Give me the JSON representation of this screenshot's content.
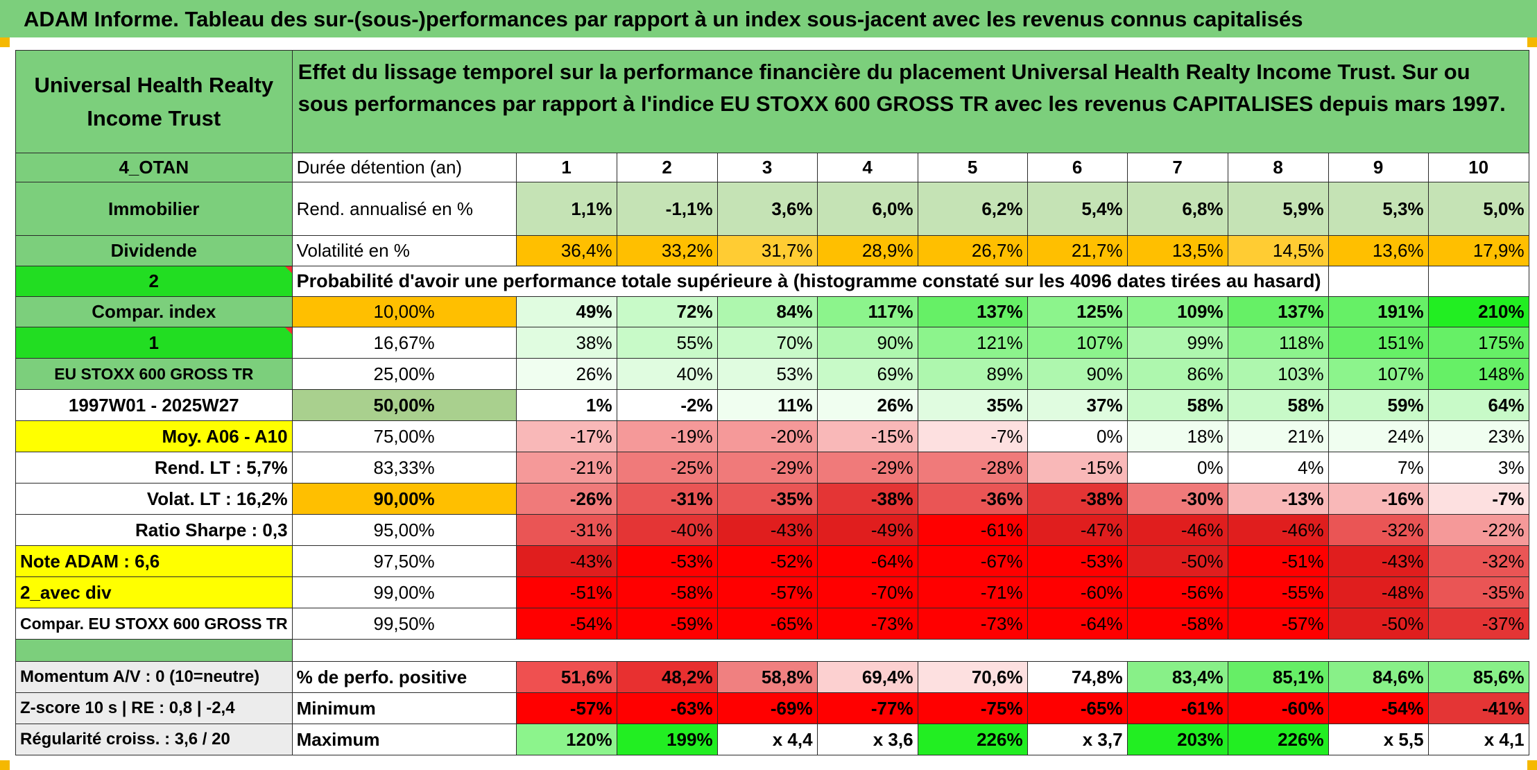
{
  "header": {
    "title": "ADAM Informe. Tableau des sur-(sous-)performances par rapport à un index sous-jacent avec les revenus connus capitalisés"
  },
  "fund": {
    "name": "Universal Health Realty Income Trust",
    "description": "Effet du lissage temporel sur la performance financière du placement Universal Health Realty Income Trust. Sur ou sous performances par rapport à l'indice EU STOXX 600 GROSS TR avec les revenus CAPITALISES depuis mars 1997."
  },
  "side_labels": {
    "code": "4_OTAN",
    "sector": "Immobilier",
    "type": "Dividende",
    "num2": "2",
    "compar": "Compar. index",
    "num1": "1",
    "index": "EU STOXX 600 GROSS TR",
    "period": "1997W01 - 2025W27",
    "moy": "Moy. A06 - A10",
    "rend_lt": "Rend. LT :   5,7%",
    "volat_lt": "Volat. LT :   16,2%",
    "sharpe": "Ratio Sharpe :   0,3",
    "note": "Note ADAM : 6,6",
    "avec_div": "2_avec div",
    "compar_full": "Compar. EU STOXX 600 GROSS TR",
    "momentum": "Momentum A/V : 0 (10=neutre)",
    "zscore": "Z-score 10 s | RE : 0,8 | -2,4",
    "regularite": "Régularité croiss. : 3,6 / 20"
  },
  "row_labels": {
    "duree": "Durée détention (an)",
    "rend": "Rend. annualisé en %",
    "volat": "Volatilité en %",
    "prob": "Probabilité d'avoir une performance totale supérieure à (histogramme constaté sur les 4096 dates tirées au hasard)",
    "pos": "% de perfo. positive",
    "min": "Minimum",
    "max": "Maximum"
  },
  "years": [
    "1",
    "2",
    "3",
    "4",
    "5",
    "6",
    "7",
    "8",
    "9",
    "10"
  ],
  "rendement": [
    "1,1%",
    "-1,1%",
    "3,6%",
    "6,0%",
    "6,2%",
    "5,4%",
    "6,8%",
    "5,9%",
    "5,3%",
    "5,0%"
  ],
  "volatilite": [
    "36,4%",
    "33,2%",
    "31,7%",
    "28,9%",
    "26,7%",
    "21,7%",
    "13,5%",
    "14,5%",
    "13,6%",
    "17,9%"
  ],
  "prob_rows": [
    {
      "pct": "10,00%",
      "values": [
        "49%",
        "72%",
        "84%",
        "117%",
        "137%",
        "125%",
        "109%",
        "137%",
        "191%",
        "210%"
      ]
    },
    {
      "pct": "16,67%",
      "values": [
        "38%",
        "55%",
        "70%",
        "90%",
        "121%",
        "107%",
        "99%",
        "118%",
        "151%",
        "175%"
      ]
    },
    {
      "pct": "25,00%",
      "values": [
        "26%",
        "40%",
        "53%",
        "69%",
        "89%",
        "90%",
        "86%",
        "103%",
        "107%",
        "148%"
      ]
    },
    {
      "pct": "50,00%",
      "values": [
        "1%",
        "-2%",
        "11%",
        "26%",
        "35%",
        "37%",
        "58%",
        "58%",
        "59%",
        "64%"
      ]
    },
    {
      "pct": "75,00%",
      "values": [
        "-17%",
        "-19%",
        "-20%",
        "-15%",
        "-7%",
        "0%",
        "18%",
        "21%",
        "24%",
        "23%"
      ]
    },
    {
      "pct": "83,33%",
      "values": [
        "-21%",
        "-25%",
        "-29%",
        "-29%",
        "-28%",
        "-15%",
        "0%",
        "4%",
        "7%",
        "3%"
      ]
    },
    {
      "pct": "90,00%",
      "values": [
        "-26%",
        "-31%",
        "-35%",
        "-38%",
        "-36%",
        "-38%",
        "-30%",
        "-13%",
        "-16%",
        "-7%"
      ]
    },
    {
      "pct": "95,00%",
      "values": [
        "-31%",
        "-40%",
        "-43%",
        "-49%",
        "-61%",
        "-47%",
        "-46%",
        "-46%",
        "-32%",
        "-22%"
      ]
    },
    {
      "pct": "97,50%",
      "values": [
        "-43%",
        "-53%",
        "-52%",
        "-64%",
        "-67%",
        "-53%",
        "-50%",
        "-51%",
        "-43%",
        "-32%"
      ]
    },
    {
      "pct": "99,00%",
      "values": [
        "-51%",
        "-58%",
        "-57%",
        "-70%",
        "-71%",
        "-60%",
        "-56%",
        "-55%",
        "-48%",
        "-35%"
      ]
    },
    {
      "pct": "99,50%",
      "values": [
        "-54%",
        "-59%",
        "-65%",
        "-73%",
        "-73%",
        "-64%",
        "-58%",
        "-57%",
        "-50%",
        "-37%"
      ]
    }
  ],
  "positive": [
    "51,6%",
    "48,2%",
    "58,8%",
    "69,4%",
    "70,6%",
    "74,8%",
    "83,4%",
    "85,1%",
    "84,6%",
    "85,6%"
  ],
  "minimum": [
    "-57%",
    "-63%",
    "-69%",
    "-77%",
    "-75%",
    "-65%",
    "-61%",
    "-60%",
    "-54%",
    "-41%"
  ],
  "maximum": [
    "120%",
    "199%",
    "x 4,4",
    "x 3,6",
    "226%",
    "x 3,7",
    "203%",
    "226%",
    "x 5,5",
    "x 4,1"
  ],
  "colors": {
    "header_green": "#7ccf7c",
    "bright_green": "#22dd22",
    "orange": "#ffbf00",
    "yellow": "#ffff00",
    "label_red": "#dd1111"
  }
}
